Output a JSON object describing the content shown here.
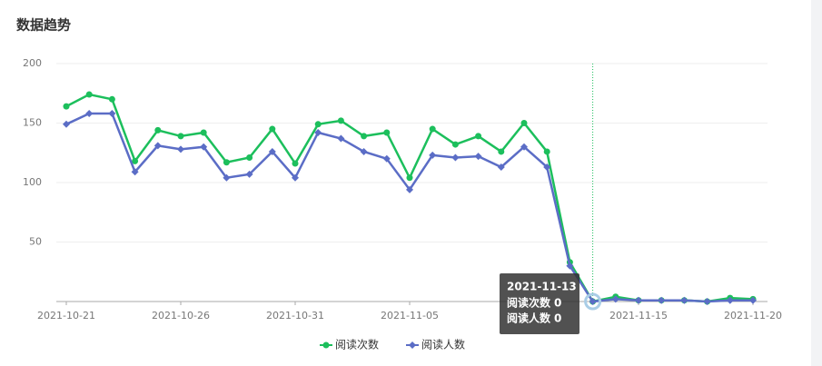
{
  "page_title": "数据趋势",
  "chart_data": {
    "type": "line",
    "x": [
      "2021-10-21",
      "2021-10-22",
      "2021-10-23",
      "2021-10-24",
      "2021-10-25",
      "2021-10-26",
      "2021-10-27",
      "2021-10-28",
      "2021-10-29",
      "2021-10-30",
      "2021-10-31",
      "2021-11-01",
      "2021-11-02",
      "2021-11-03",
      "2021-11-04",
      "2021-11-05",
      "2021-11-06",
      "2021-11-07",
      "2021-11-08",
      "2021-11-09",
      "2021-11-10",
      "2021-11-11",
      "2021-11-12",
      "2021-11-13",
      "2021-11-14",
      "2021-11-15",
      "2021-11-16",
      "2021-11-17",
      "2021-11-18",
      "2021-11-19",
      "2021-11-20"
    ],
    "xticks": [
      "2021-10-21",
      "2021-10-26",
      "2021-10-31",
      "2021-11-05",
      "2021-11-15",
      "2021-11-20"
    ],
    "series": [
      {
        "name": "阅读次数",
        "color": "#1cbf5c",
        "marker": "circle",
        "values": [
          164,
          174,
          170,
          118,
          144,
          139,
          142,
          117,
          121,
          145,
          116,
          149,
          152,
          139,
          142,
          104,
          145,
          132,
          139,
          126,
          150,
          126,
          33,
          0,
          4,
          1,
          1,
          1,
          0,
          3,
          2
        ]
      },
      {
        "name": "阅读人数",
        "color": "#5b6dc6",
        "marker": "diamond",
        "values": [
          149,
          158,
          158,
          109,
          131,
          128,
          130,
          104,
          107,
          126,
          104,
          142,
          137,
          126,
          120,
          94,
          123,
          121,
          122,
          113,
          130,
          113,
          30,
          0,
          2,
          1,
          1,
          1,
          0,
          1,
          1
        ]
      }
    ],
    "ylim": [
      0,
      200
    ],
    "yticks": [
      50,
      100,
      150,
      200
    ],
    "grid": true,
    "legend": "bottom",
    "tooltip": {
      "x": "2021-11-13"
    }
  }
}
